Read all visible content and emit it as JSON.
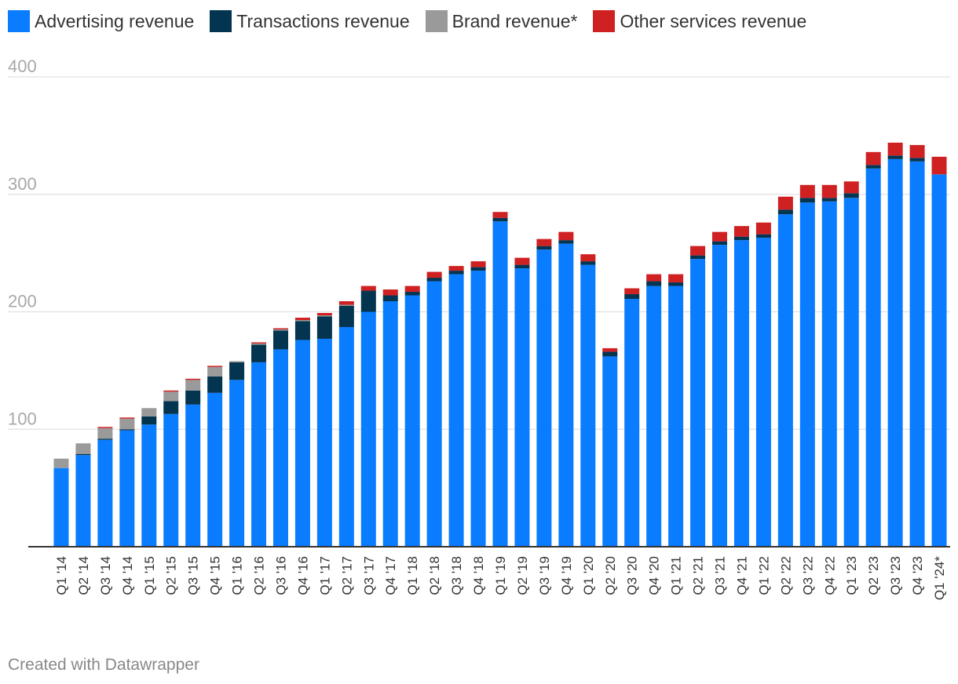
{
  "chart_data": {
    "type": "bar",
    "stacked": true,
    "title": "",
    "xlabel": "",
    "ylabel": "",
    "ylim": [
      0,
      400
    ],
    "yticks": [
      100,
      200,
      300,
      400
    ],
    "grid": true,
    "legend_position": "top-left",
    "categories": [
      "Q1 '14",
      "Q2 '14",
      "Q3 '14",
      "Q4 '14",
      "Q1 '15",
      "Q2 '15",
      "Q3 '15",
      "Q4 '15",
      "Q1 '16",
      "Q2 '16",
      "Q3 '16",
      "Q4 '16",
      "Q1 '17",
      "Q2 '17",
      "Q3 '17",
      "Q4 '17",
      "Q1 '18",
      "Q2 '18",
      "Q3 '18",
      "Q4 '18",
      "Q1 '19",
      "Q2 '19",
      "Q3 '19",
      "Q4 '19",
      "Q1 '20",
      "Q2 '20",
      "Q3 '20",
      "Q4 '20",
      "Q1 '21",
      "Q2 '21",
      "Q3 '21",
      "Q4 '21",
      "Q1 '22",
      "Q2 '22",
      "Q3 '22",
      "Q4 '22",
      "Q1 '23",
      "Q2 '23",
      "Q3 '23",
      "Q4 '23",
      "Q1 '24*"
    ],
    "series": [
      {
        "name": "Advertising revenue",
        "color": "#0a7cff",
        "values": [
          67,
          78,
          91,
          99,
          104,
          113,
          121,
          131,
          142,
          157,
          168,
          176,
          177,
          187,
          200,
          209,
          214,
          226,
          232,
          235,
          277,
          237,
          253,
          258,
          240,
          162,
          211,
          222,
          222,
          245,
          257,
          261,
          263,
          283,
          293,
          294,
          297,
          322,
          330,
          328,
          317
        ]
      },
      {
        "name": "Transactions revenue",
        "color": "#033450",
        "values": [
          0,
          1,
          1,
          1,
          7,
          11,
          12,
          14,
          15,
          15,
          16,
          16,
          19,
          18,
          18,
          5,
          3,
          3,
          3,
          3,
          3,
          3,
          3,
          3,
          3,
          4,
          4,
          4,
          3,
          3,
          3,
          3,
          3,
          4,
          4,
          3,
          4,
          3,
          3,
          3,
          0
        ]
      },
      {
        "name": "Brand revenue*",
        "color": "#9a9a9a",
        "values": [
          8,
          9,
          9,
          9,
          7,
          8,
          9,
          8,
          1,
          1,
          1,
          1,
          1,
          1,
          0,
          0,
          0,
          0,
          0,
          0,
          0,
          0,
          0,
          0,
          0,
          0,
          0,
          0,
          0,
          0,
          0,
          0,
          0,
          0,
          0,
          0,
          0,
          0,
          0,
          0,
          0
        ]
      },
      {
        "name": "Other services revenue",
        "color": "#cf2022",
        "values": [
          0,
          0,
          1,
          1,
          0,
          1,
          1,
          1,
          0,
          1,
          1,
          2,
          2,
          3,
          4,
          5,
          5,
          5,
          4,
          5,
          5,
          6,
          6,
          7,
          6,
          3,
          5,
          6,
          7,
          8,
          8,
          9,
          10,
          11,
          11,
          11,
          10,
          11,
          11,
          11,
          15
        ]
      }
    ]
  },
  "footer": {
    "credit": "Created with Datawrapper"
  }
}
